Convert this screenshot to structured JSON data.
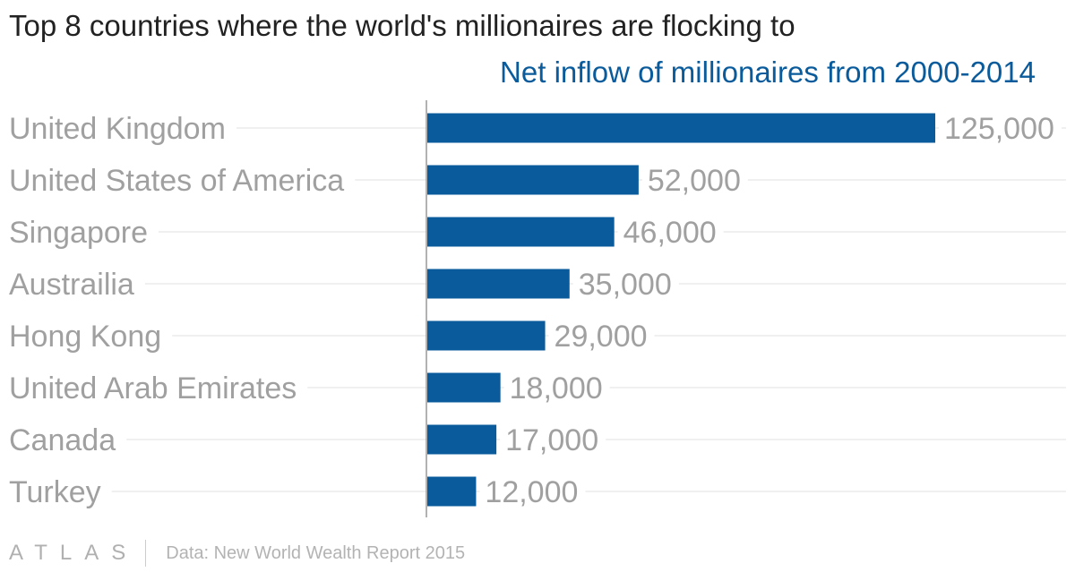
{
  "title": "Top 8 countries where the world's millionaires are flocking to",
  "footer": {
    "brand": "ATLAS",
    "source": "Data: New World Wealth Report 2015"
  },
  "colors": {
    "bar": "#0a5b9c",
    "title": "#222222",
    "labels": "#a0a0a0",
    "series_label": "#0a5b9c"
  },
  "chart_data": {
    "type": "bar",
    "orientation": "horizontal",
    "title": "Top 8 countries where the world's millionaires are flocking to",
    "categories": [
      "United Kingdom",
      "United States of America",
      "Singapore",
      "Austrailia",
      "Hong Kong",
      "United Arab Emirates",
      "Canada",
      "Turkey"
    ],
    "series": [
      {
        "name": "Net inflow of millionaires from 2000-2014",
        "values": [
          125000,
          52000,
          46000,
          35000,
          29000,
          18000,
          17000,
          12000
        ],
        "value_labels": [
          "125,000",
          "52,000",
          "46,000",
          "35,000",
          "29,000",
          "18,000",
          "17,000",
          "12,000"
        ]
      }
    ],
    "xlim": [
      0,
      125000
    ],
    "grid": true,
    "legend": "top-right"
  }
}
